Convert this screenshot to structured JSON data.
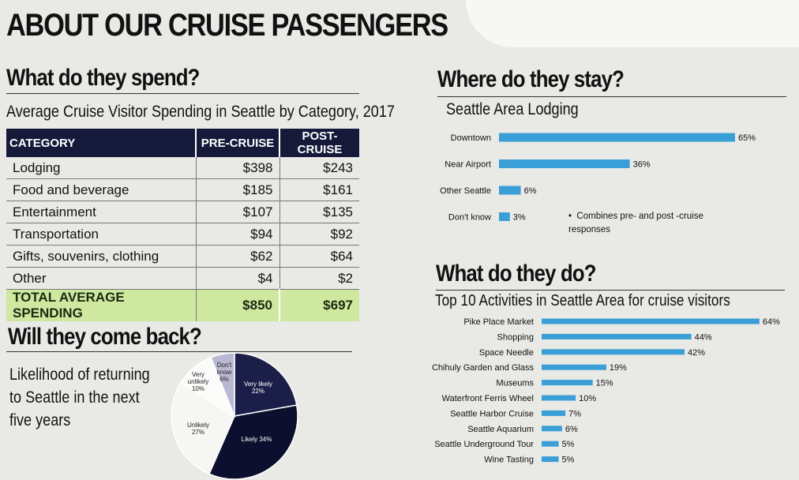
{
  "title": "ABOUT OUR CRUISE PASSENGERS",
  "spend": {
    "heading": "What do they spend?",
    "subtitle": "Average Cruise Visitor Spending in Seattle by Category, 2017",
    "columns": [
      "CATEGORY",
      "PRE-CRUISE",
      "POST-CRUISE"
    ],
    "rows": [
      [
        "Lodging",
        "$398",
        "$243"
      ],
      [
        "Food and beverage",
        "$185",
        "$161"
      ],
      [
        "Entertainment",
        "$107",
        "$135"
      ],
      [
        "Transportation",
        "$94",
        "$92"
      ],
      [
        "Gifts, souvenirs, clothing",
        "$62",
        "$64"
      ],
      [
        "Other",
        "$4",
        "$2"
      ]
    ],
    "total": [
      "TOTAL AVERAGE SPENDING",
      "$850",
      "$697"
    ]
  },
  "return": {
    "heading": "Will they come back?",
    "subtitle_lines": [
      "Likelihood of returning",
      "to Seattle in the next",
      "five years"
    ]
  },
  "stay": {
    "heading": "Where do they stay?",
    "note": "Combines  pre- and post -cruise responses"
  },
  "do": {
    "heading": "What do they do?"
  },
  "chart_data": [
    {
      "type": "pie",
      "title": "",
      "categories": [
        "Very likely",
        "Likely",
        "Unlikely",
        "Very unlikely",
        "Don't know"
      ],
      "values": [
        22,
        34,
        27,
        10,
        6
      ],
      "colors": [
        "#1b1e48",
        "#0d0f2e",
        "#f6f6f3",
        "#fbfbf9",
        "#b8b8d2"
      ]
    },
    {
      "type": "bar",
      "orientation": "horizontal",
      "title": "Seattle Area Lodging",
      "unit": "%",
      "categories": [
        "Downtown",
        "Near Airport",
        "Other Seattle",
        "Don't know"
      ],
      "values": [
        65,
        36,
        6,
        3
      ],
      "color": "#3a9fd6"
    },
    {
      "type": "bar",
      "orientation": "horizontal",
      "title": "Top 10 Activities in Seattle Area for cruise visitors",
      "unit": "%",
      "categories": [
        "Pike Place Market",
        "Shopping",
        "Space Needle",
        "Chihuly Garden and Glass",
        "Museums",
        "Waterfront  Ferris Wheel",
        "Seattle Harbor Cruise",
        "Seattle Aquarium",
        "Seattle Underground Tour",
        "Wine Tasting"
      ],
      "values": [
        64,
        44,
        42,
        19,
        15,
        10,
        7,
        6,
        5,
        5
      ],
      "color": "#3a9fd6"
    }
  ]
}
